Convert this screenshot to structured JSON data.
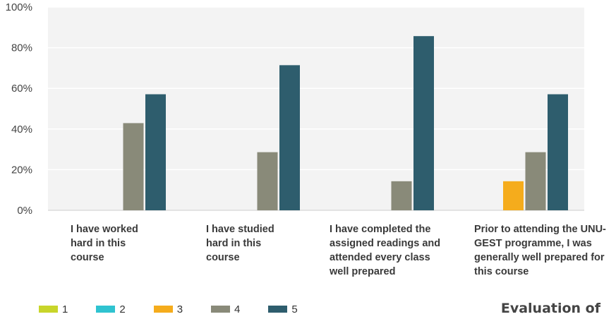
{
  "chart_data": {
    "type": "bar",
    "categories": [
      "I have worked hard in this course",
      "I have studied hard in this course",
      "I have completed the assigned readings and attended every class well prepared",
      "Prior to attending the UNU-GEST programme, I was generally well prepared for this course"
    ],
    "series": [
      {
        "name": "1",
        "color": "#c8d52a",
        "values": [
          0,
          0,
          0,
          0
        ]
      },
      {
        "name": "2",
        "color": "#2fc3d0",
        "values": [
          0,
          0,
          0,
          0
        ]
      },
      {
        "name": "3",
        "color": "#f5ac1c",
        "values": [
          0,
          0,
          0,
          14.3
        ]
      },
      {
        "name": "4",
        "color": "#898a79",
        "values": [
          42.9,
          28.6,
          14.3,
          28.6
        ]
      },
      {
        "name": "5",
        "color": "#2e5d6d",
        "values": [
          57.1,
          71.4,
          85.7,
          57.1
        ]
      }
    ],
    "ylim": [
      0,
      100
    ],
    "yticks": [
      "0%",
      "20%",
      "40%",
      "60%",
      "80%",
      "100%"
    ],
    "grid": true,
    "legend": "bottom"
  },
  "labels": {
    "cat1": "I have worked\nhard in this\ncourse",
    "cat2": "I have studied\nhard in this\ncourse",
    "cat3": "I have completed the\nassigned readings and\nattended every class\nwell prepared",
    "cat4": "Prior to attending the UNU-\nGEST programme, I was\ngenerally well prepared for\nthis course"
  },
  "footer_title": "Evaluation of"
}
